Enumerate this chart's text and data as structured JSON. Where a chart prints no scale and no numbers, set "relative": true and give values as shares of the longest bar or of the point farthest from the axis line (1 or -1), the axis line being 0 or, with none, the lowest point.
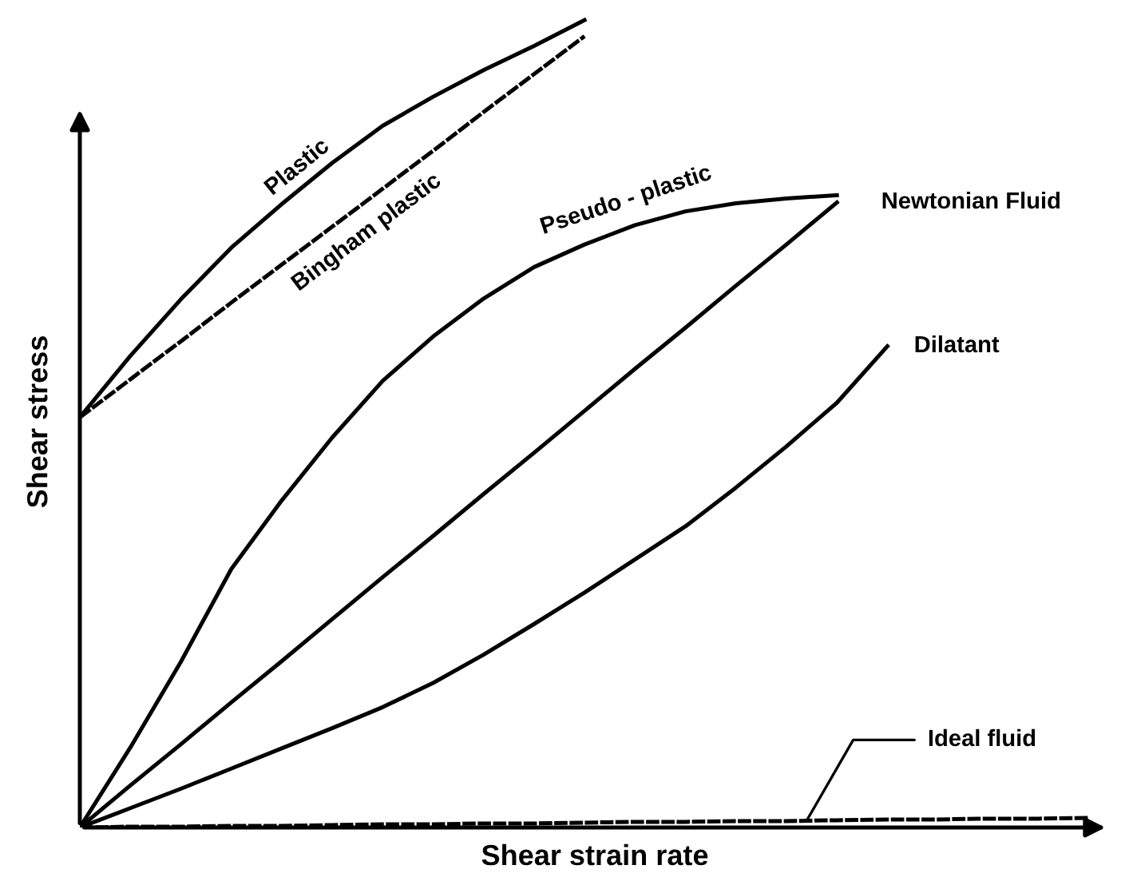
{
  "chart_data": {
    "type": "line",
    "relative": true,
    "xlabel": "Shear strain rate",
    "ylabel": "Shear stress",
    "categories": [
      null,
      null,
      null,
      null,
      null,
      null,
      null,
      null,
      null,
      null,
      null,
      null,
      null,
      null,
      null,
      null,
      null,
      null,
      null,
      null,
      null
    ],
    "series": [
      {
        "name": "Plastic",
        "color": "#000000",
        "line_style": "solid",
        "values": [
          0.508,
          0.584,
          0.654,
          0.718,
          0.772,
          0.823,
          0.869,
          0.905,
          0.938,
          0.968,
          1,
          null,
          null,
          null,
          null,
          null,
          null,
          null,
          null,
          null,
          null
        ]
      },
      {
        "name": "Bingham plastic",
        "color": "#000000",
        "line_style": "dashed",
        "values": [
          0.508,
          0.555,
          0.602,
          0.65,
          0.697,
          0.744,
          0.791,
          0.838,
          0.886,
          0.933,
          0.98,
          null,
          null,
          null,
          null,
          null,
          null,
          null,
          null,
          null,
          null
        ]
      },
      {
        "name": "Pseudo - plastic",
        "color": "#000000",
        "line_style": "solid",
        "values": [
          0,
          0.099,
          0.205,
          0.32,
          0.405,
          0.483,
          0.553,
          0.608,
          0.655,
          0.694,
          0.722,
          0.746,
          0.763,
          0.773,
          0.779,
          0.783,
          null,
          null,
          null,
          null,
          null
        ]
      },
      {
        "name": "Newtonian Fluid",
        "color": "#000000",
        "line_style": "solid",
        "values": [
          0,
          0.052,
          0.103,
          0.155,
          0.206,
          0.258,
          0.31,
          0.361,
          0.413,
          0.464,
          0.516,
          0.568,
          0.619,
          0.671,
          0.722,
          0.774,
          null,
          null,
          null,
          null,
          null
        ]
      },
      {
        "name": "Dilatant",
        "color": "#000000",
        "line_style": "solid",
        "values": [
          0,
          0.024,
          0.048,
          0.073,
          0.098,
          0.123,
          0.149,
          0.179,
          0.214,
          0.252,
          0.291,
          0.332,
          0.373,
          0.421,
          0.472,
          0.526,
          0.596,
          null,
          null,
          null,
          null
        ]
      },
      {
        "name": "Ideal fluid",
        "color": "#000000",
        "line_style": "dashed",
        "values": [
          0,
          0.001,
          0.001,
          0.002,
          0.002,
          0.003,
          0.004,
          0.004,
          0.005,
          0.005,
          0.006,
          0.007,
          0.007,
          0.008,
          0.008,
          0.009,
          0.01,
          0.01,
          0.011,
          0.011,
          0.012
        ]
      }
    ]
  }
}
